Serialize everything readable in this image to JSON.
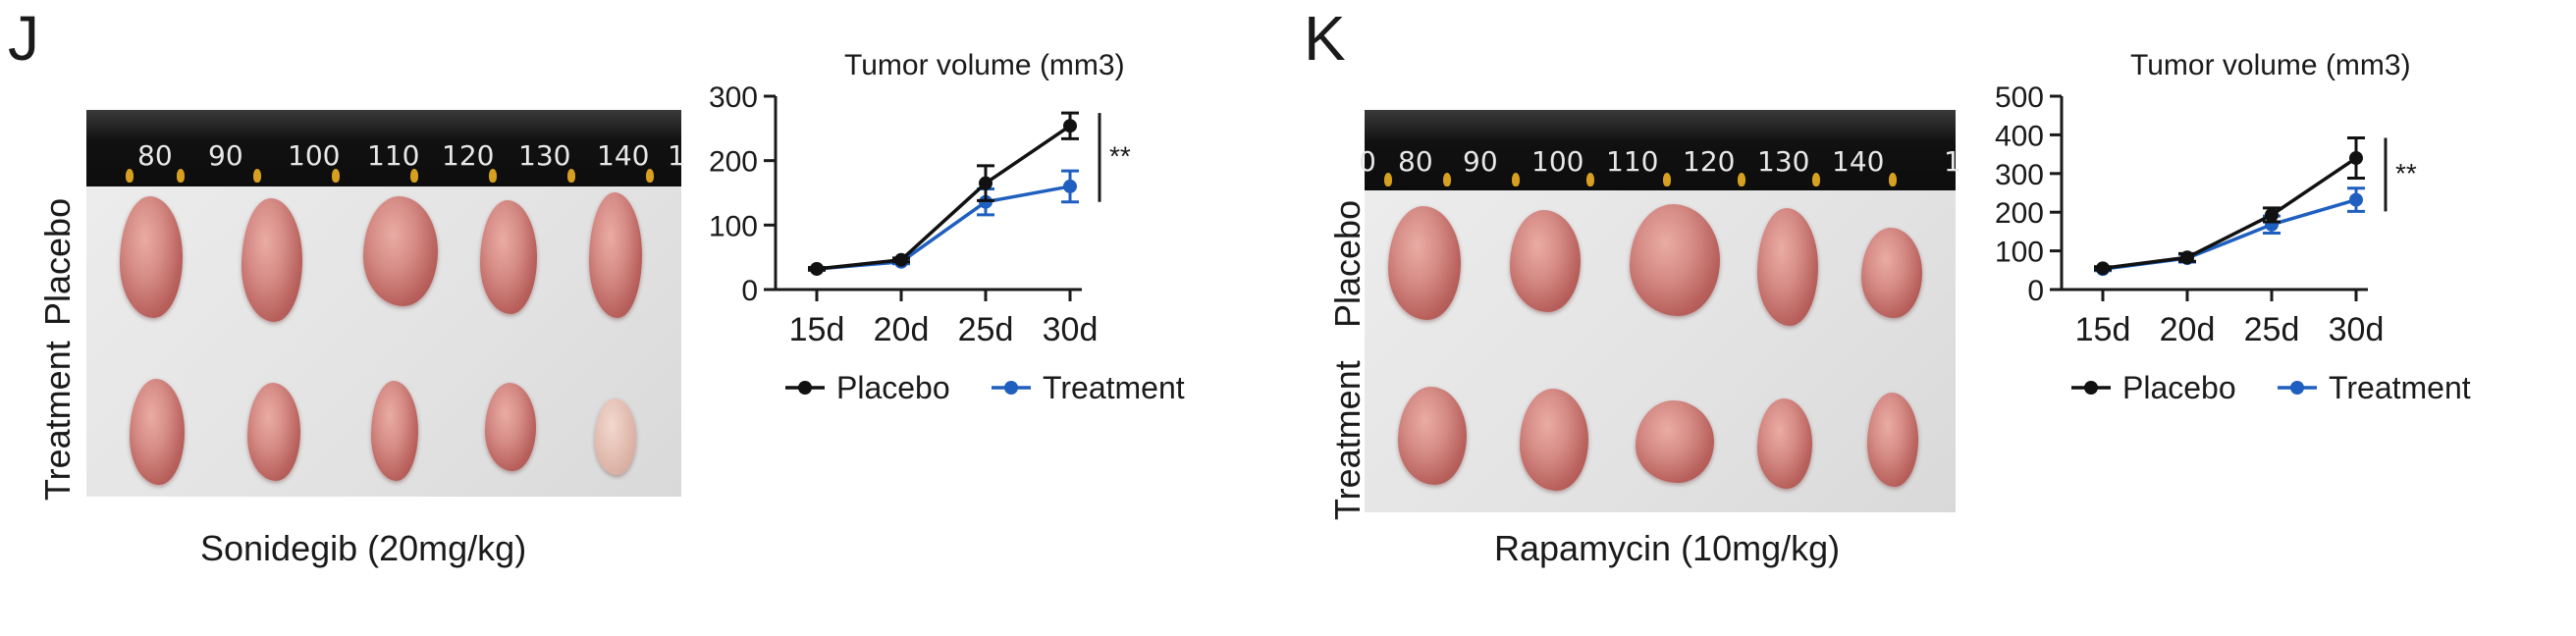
{
  "panels": [
    {
      "letter": "J",
      "photo": {
        "ruler_ticks": [
          "80",
          "90",
          "100",
          "110",
          "120",
          "130",
          "140",
          "1"
        ],
        "row_labels": [
          "Placebo",
          "Treatment"
        ],
        "caption": "Sonidegib (20mg/kg)"
      }
    },
    {
      "letter": "K",
      "photo": {
        "ruler_ticks": [
          "0",
          "80",
          "90",
          "100",
          "110",
          "120",
          "130",
          "140",
          "1"
        ],
        "row_labels": [
          "Placebo",
          "Treatment"
        ],
        "caption": "Rapamycin (10mg/kg)"
      }
    }
  ],
  "chart_data": [
    {
      "type": "line",
      "title": "Tumor  volume (mm3)",
      "categories": [
        "15d",
        "20d",
        "25d",
        "30d"
      ],
      "ylim": [
        0,
        300
      ],
      "yticks": [
        0,
        100,
        200,
        300
      ],
      "series": [
        {
          "name": "Placebo",
          "color": "#111111",
          "values": [
            32,
            46,
            165,
            254
          ],
          "errors": [
            2,
            3,
            27,
            20
          ]
        },
        {
          "name": "Treatment",
          "color": "#1f5fbf",
          "values": [
            32,
            43,
            136,
            160
          ],
          "errors": [
            2,
            3,
            20,
            24
          ]
        }
      ],
      "annotation": "**",
      "legend": "bottom"
    },
    {
      "type": "line",
      "title": "Tumor  volume (mm3)",
      "categories": [
        "15d",
        "20d",
        "25d",
        "30d"
      ],
      "ylim": [
        0,
        500
      ],
      "yticks": [
        0,
        100,
        200,
        300,
        400,
        500
      ],
      "series": [
        {
          "name": "Placebo",
          "color": "#111111",
          "values": [
            55,
            83,
            193,
            340
          ],
          "errors": [
            4,
            10,
            18,
            52
          ]
        },
        {
          "name": "Treatment",
          "color": "#1f5fbf",
          "values": [
            53,
            81,
            168,
            232
          ],
          "errors": [
            4,
            10,
            22,
            30
          ]
        }
      ],
      "annotation": "**",
      "legend": "bottom"
    }
  ]
}
